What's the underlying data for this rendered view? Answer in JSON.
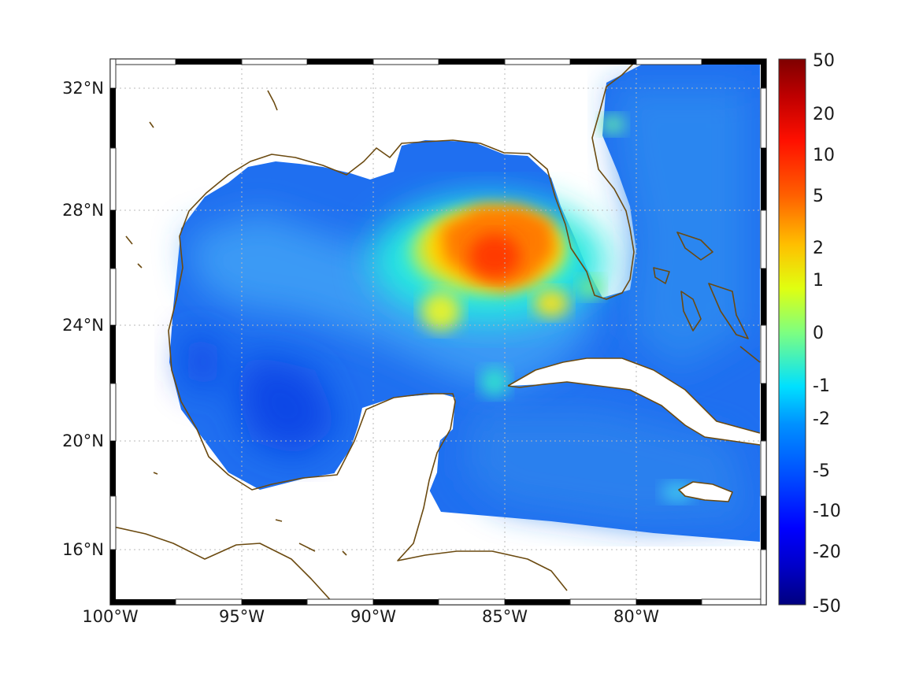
{
  "map": {
    "x_ticks": [
      "100°W",
      "95°W",
      "90°W",
      "85°W",
      "80°W"
    ],
    "y_ticks": [
      "32°N",
      "28°N",
      "24°N",
      "20°N",
      "16°N"
    ],
    "colorbar_ticks": [
      "50",
      "20",
      "10",
      "5",
      "2",
      "1",
      "0",
      "-1",
      "-2",
      "-5",
      "-10",
      "-20",
      "-50"
    ],
    "colormap": [
      "#00007f",
      "#0000ff",
      "#007fff",
      "#00ffff",
      "#7fff7f",
      "#ffff00",
      "#ff7f00",
      "#ff0000",
      "#7f0000"
    ],
    "coastline_color": "#6b4a10",
    "grid": "on"
  },
  "chart_data": {
    "type": "heatmap",
    "x_range": [
      -100,
      -75
    ],
    "y_range": [
      15,
      33
    ],
    "x_ticks": [
      -100,
      -95,
      -90,
      -85,
      -80
    ],
    "y_ticks": [
      16,
      20,
      24,
      28,
      32
    ],
    "color_range": [
      -50,
      50
    ],
    "colorbar_ticks": [
      50,
      20,
      10,
      5,
      2,
      1,
      0,
      -1,
      -2,
      -5,
      -10,
      -20,
      -50
    ],
    "grid": "on",
    "features": [
      {
        "lon": -85.5,
        "lat": 26.5,
        "value": 8
      },
      {
        "lon": -84.0,
        "lat": 27.0,
        "value": 4
      },
      {
        "lon": -87.0,
        "lat": 26.8,
        "value": 2
      },
      {
        "lon": -93.0,
        "lat": 23.0,
        "value": -6
      },
      {
        "lon": -79.0,
        "lat": 28.5,
        "value": -5
      },
      {
        "lon": -84.0,
        "lat": 19.5,
        "value": -5
      }
    ]
  }
}
